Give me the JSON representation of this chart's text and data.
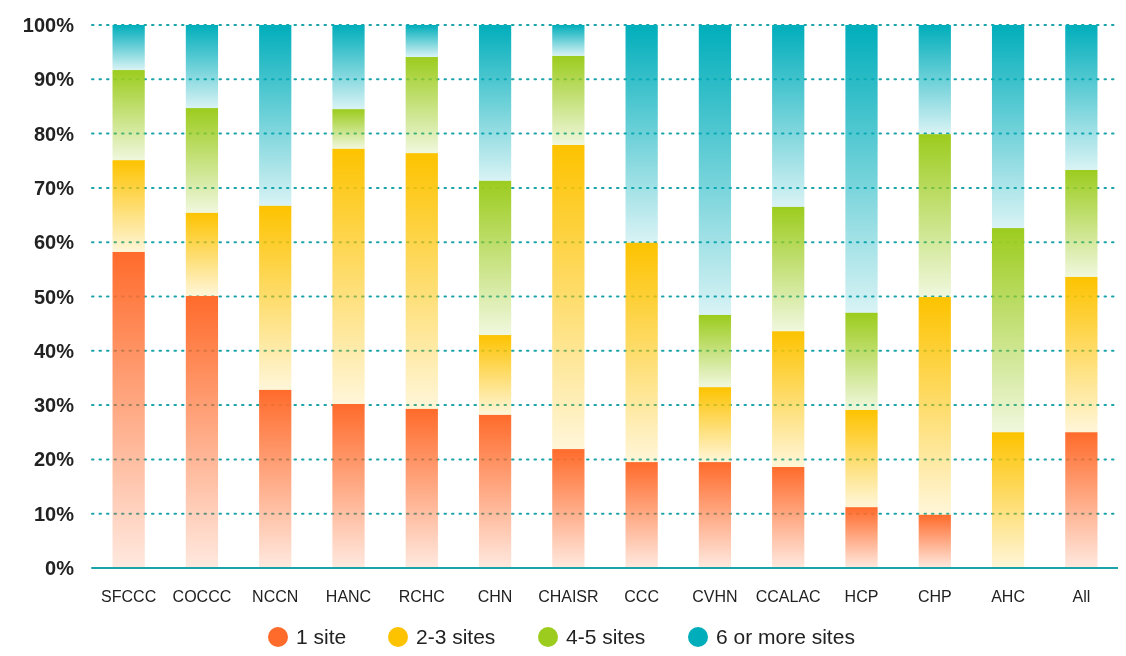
{
  "chart_data": {
    "type": "bar",
    "stacked": true,
    "categories": [
      "SFCCC",
      "COCCC",
      "NCCN",
      "HANC",
      "RCHC",
      "CHN",
      "CHAISR",
      "CCC",
      "CVHN",
      "CCALAC",
      "HCP",
      "CHP",
      "AHC",
      "All"
    ],
    "series": [
      {
        "name": "1 site",
        "color": "#ff6b2b",
        "values": [
          58.2,
          50.1,
          32.8,
          30.2,
          29.3,
          28.2,
          21.9,
          19.5,
          19.5,
          18.6,
          11.2,
          9.8,
          0,
          25
        ]
      },
      {
        "name": "2-3 sites",
        "color": "#fdc300",
        "values": [
          16.9,
          15.3,
          33.9,
          47,
          47.1,
          14.7,
          56,
          40.4,
          13.8,
          25,
          17.9,
          40.1,
          25,
          28.6
        ]
      },
      {
        "name": "4-5 sites",
        "color": "#9ccc1e",
        "values": [
          16.6,
          19.3,
          0,
          7.3,
          17.7,
          28.4,
          16.4,
          0,
          13.3,
          22.9,
          17.9,
          30,
          37.6,
          19.7
        ]
      },
      {
        "name": "6 or more sites",
        "color": "#00aebb",
        "values": [
          8.3,
          15.3,
          33.3,
          15.5,
          5.9,
          28.7,
          5.7,
          40.1,
          53.4,
          33.5,
          53,
          20.1,
          37.4,
          26.7
        ]
      }
    ],
    "ylim": [
      0,
      100
    ],
    "yticks": [
      {
        "value": 0,
        "label": "0%"
      },
      {
        "value": 10,
        "label": "10%"
      },
      {
        "value": 20,
        "label": "20%"
      },
      {
        "value": 30,
        "label": "30%"
      },
      {
        "value": 40,
        "label": "40%"
      },
      {
        "value": 50,
        "label": "50%"
      },
      {
        "value": 60,
        "label": "60%"
      },
      {
        "value": 70,
        "label": "70%"
      },
      {
        "value": 80,
        "label": "80%"
      },
      {
        "value": 90,
        "label": "90%"
      },
      {
        "value": 100,
        "label": "100%"
      }
    ],
    "grid": "y",
    "legend": "bottom"
  }
}
